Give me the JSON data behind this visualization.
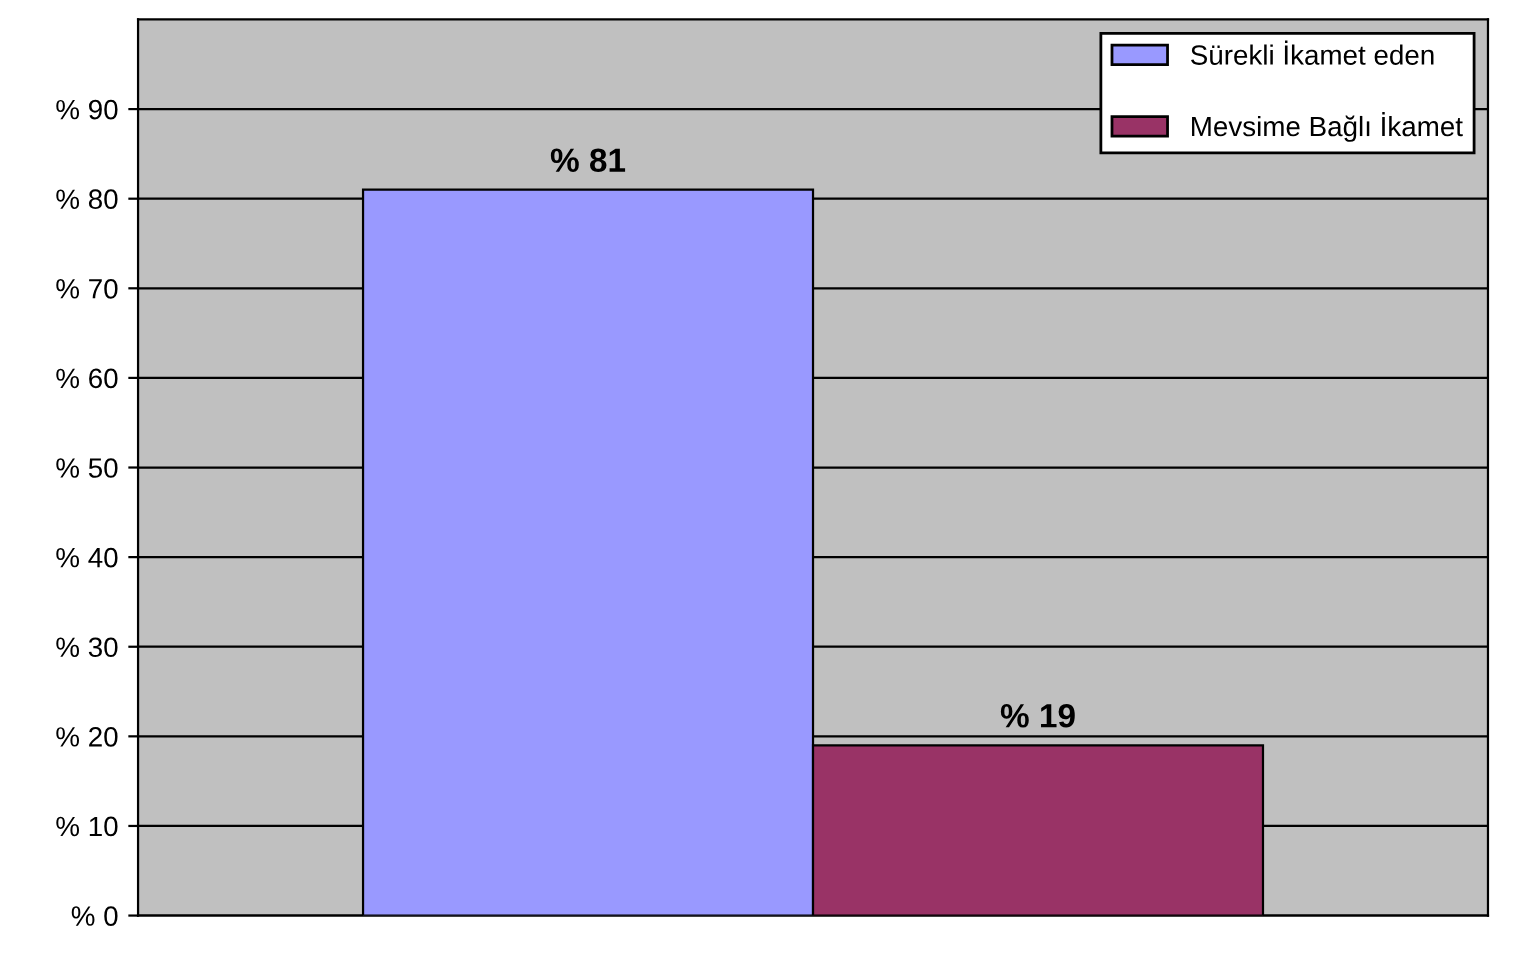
{
  "chart_data": {
    "type": "bar",
    "categories": [
      null
    ],
    "series": [
      {
        "name": "Sürekli İkamet eden",
        "color": "#9999ff",
        "values": [
          81
        ],
        "value_labels": [
          "% 81"
        ]
      },
      {
        "name": "Mevsime Bağlı İkamet",
        "color": "#993366",
        "values": [
          19
        ],
        "value_labels": [
          "% 19"
        ]
      }
    ],
    "ylim": [
      0,
      100
    ],
    "yticks": [
      {
        "value": 0,
        "label": "% 0"
      },
      {
        "value": 10,
        "label": "% 10"
      },
      {
        "value": 20,
        "label": "% 20"
      },
      {
        "value": 30,
        "label": "% 30"
      },
      {
        "value": 40,
        "label": "% 40"
      },
      {
        "value": 50,
        "label": "% 50"
      },
      {
        "value": 60,
        "label": "% 60"
      },
      {
        "value": 70,
        "label": "% 70"
      },
      {
        "value": 80,
        "label": "% 80"
      },
      {
        "value": 90,
        "label": "% 90"
      }
    ],
    "grid": "y",
    "legend": "top right"
  }
}
